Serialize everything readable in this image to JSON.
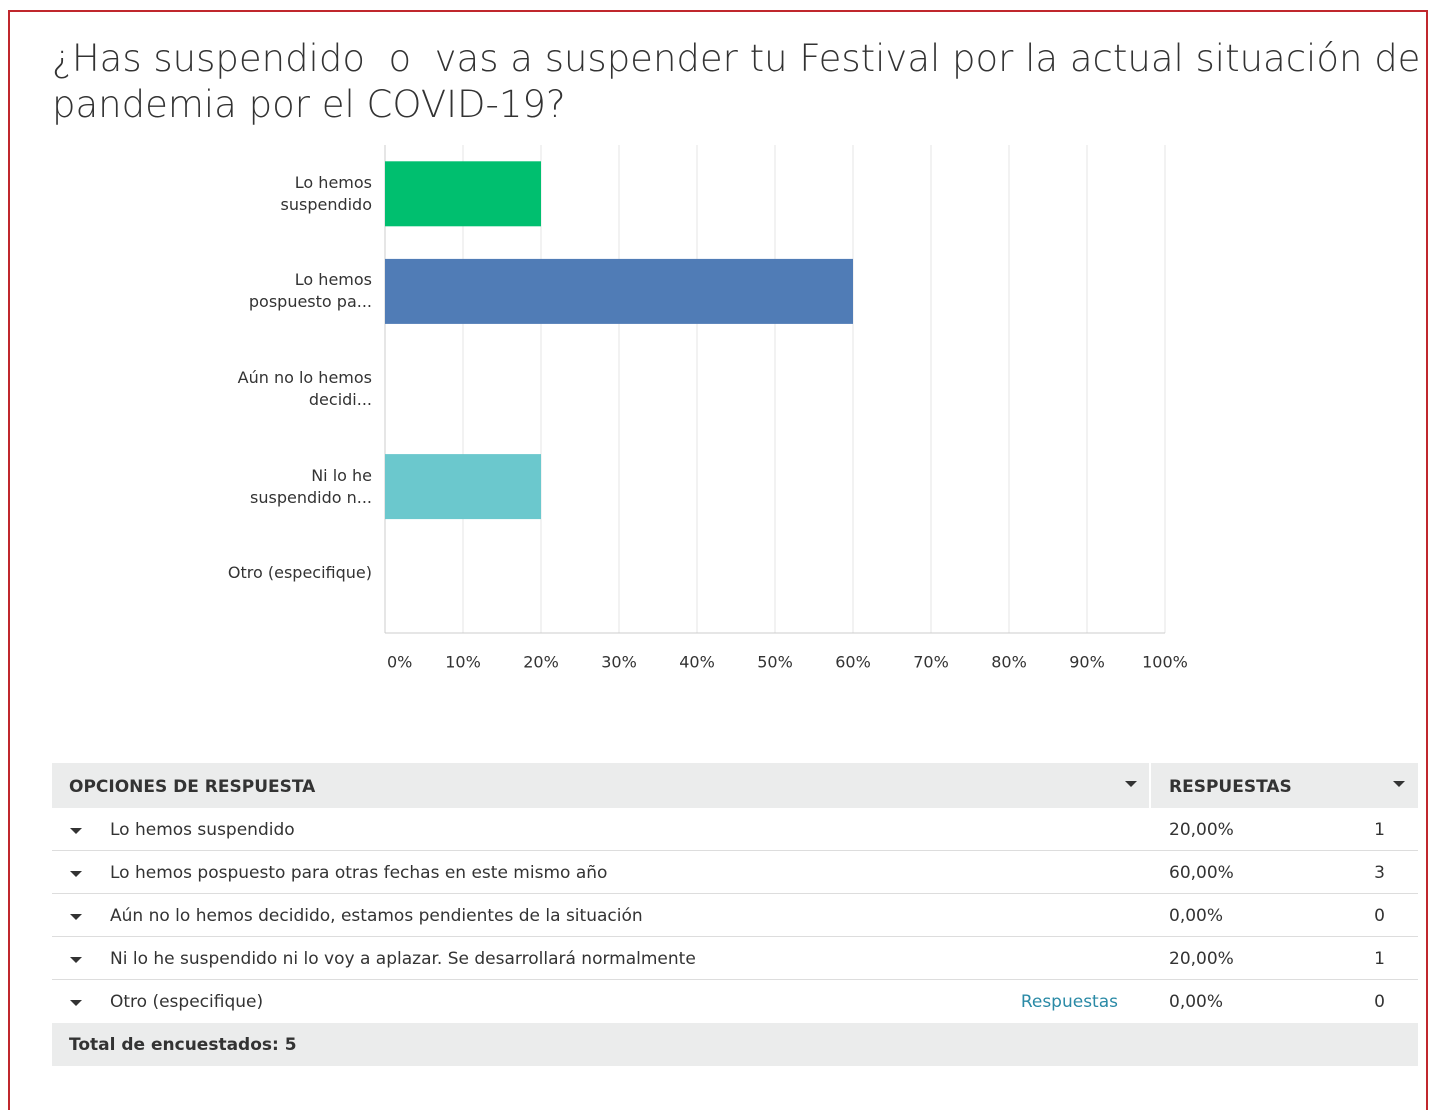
{
  "chart_data": {
    "type": "hbar",
    "title": "¿Has suspendido  o  vas a suspender tu Festival por la actual situación de pandemia por el COVID-19?",
    "categories": [
      "Lo hemos suspendido",
      "Lo hemos pospuesto pa...",
      "Aún no lo hemos decidi...",
      "Ni lo he suspendido n...",
      "Otro (especifique)"
    ],
    "values": [
      20,
      60,
      0,
      20,
      0
    ],
    "colors": [
      "#00bf6f",
      "#507cb6",
      "#f7b733",
      "#6bc8cd",
      "#eb6b5d"
    ],
    "xlim": [
      0,
      100
    ],
    "xticks": [
      {
        "value": 0,
        "label": "0%"
      },
      {
        "value": 10,
        "label": "10%"
      },
      {
        "value": 20,
        "label": "20%"
      },
      {
        "value": 30,
        "label": "30%"
      },
      {
        "value": 40,
        "label": "40%"
      },
      {
        "value": 50,
        "label": "50%"
      },
      {
        "value": 60,
        "label": "60%"
      },
      {
        "value": 70,
        "label": "70%"
      },
      {
        "value": 80,
        "label": "80%"
      },
      {
        "value": 90,
        "label": "90%"
      },
      {
        "value": 100,
        "label": "100%"
      }
    ],
    "grid": true
  },
  "table": {
    "header": [
      "OPCIONES DE RESPUESTA",
      "RESPUESTAS"
    ],
    "rows": [
      {
        "label": "Lo hemos suspendido",
        "percent": "20,00%",
        "count": "1"
      },
      {
        "label": "Lo hemos pospuesto para otras  fechas en este mismo año",
        "percent": "60,00%",
        "count": "3"
      },
      {
        "label": "Aún no lo hemos decidido, estamos pendientes de la situación",
        "percent": "0,00%",
        "count": "0"
      },
      {
        "label": "Ni lo he suspendido ni lo voy a aplazar. Se desarrollará normalmente",
        "percent": "20,00%",
        "count": "1"
      },
      {
        "label": "Otro (especifique)",
        "link": "Respuestas",
        "percent": "0,00%",
        "count": "0"
      }
    ],
    "footer": "Total de encuestados: 5"
  }
}
